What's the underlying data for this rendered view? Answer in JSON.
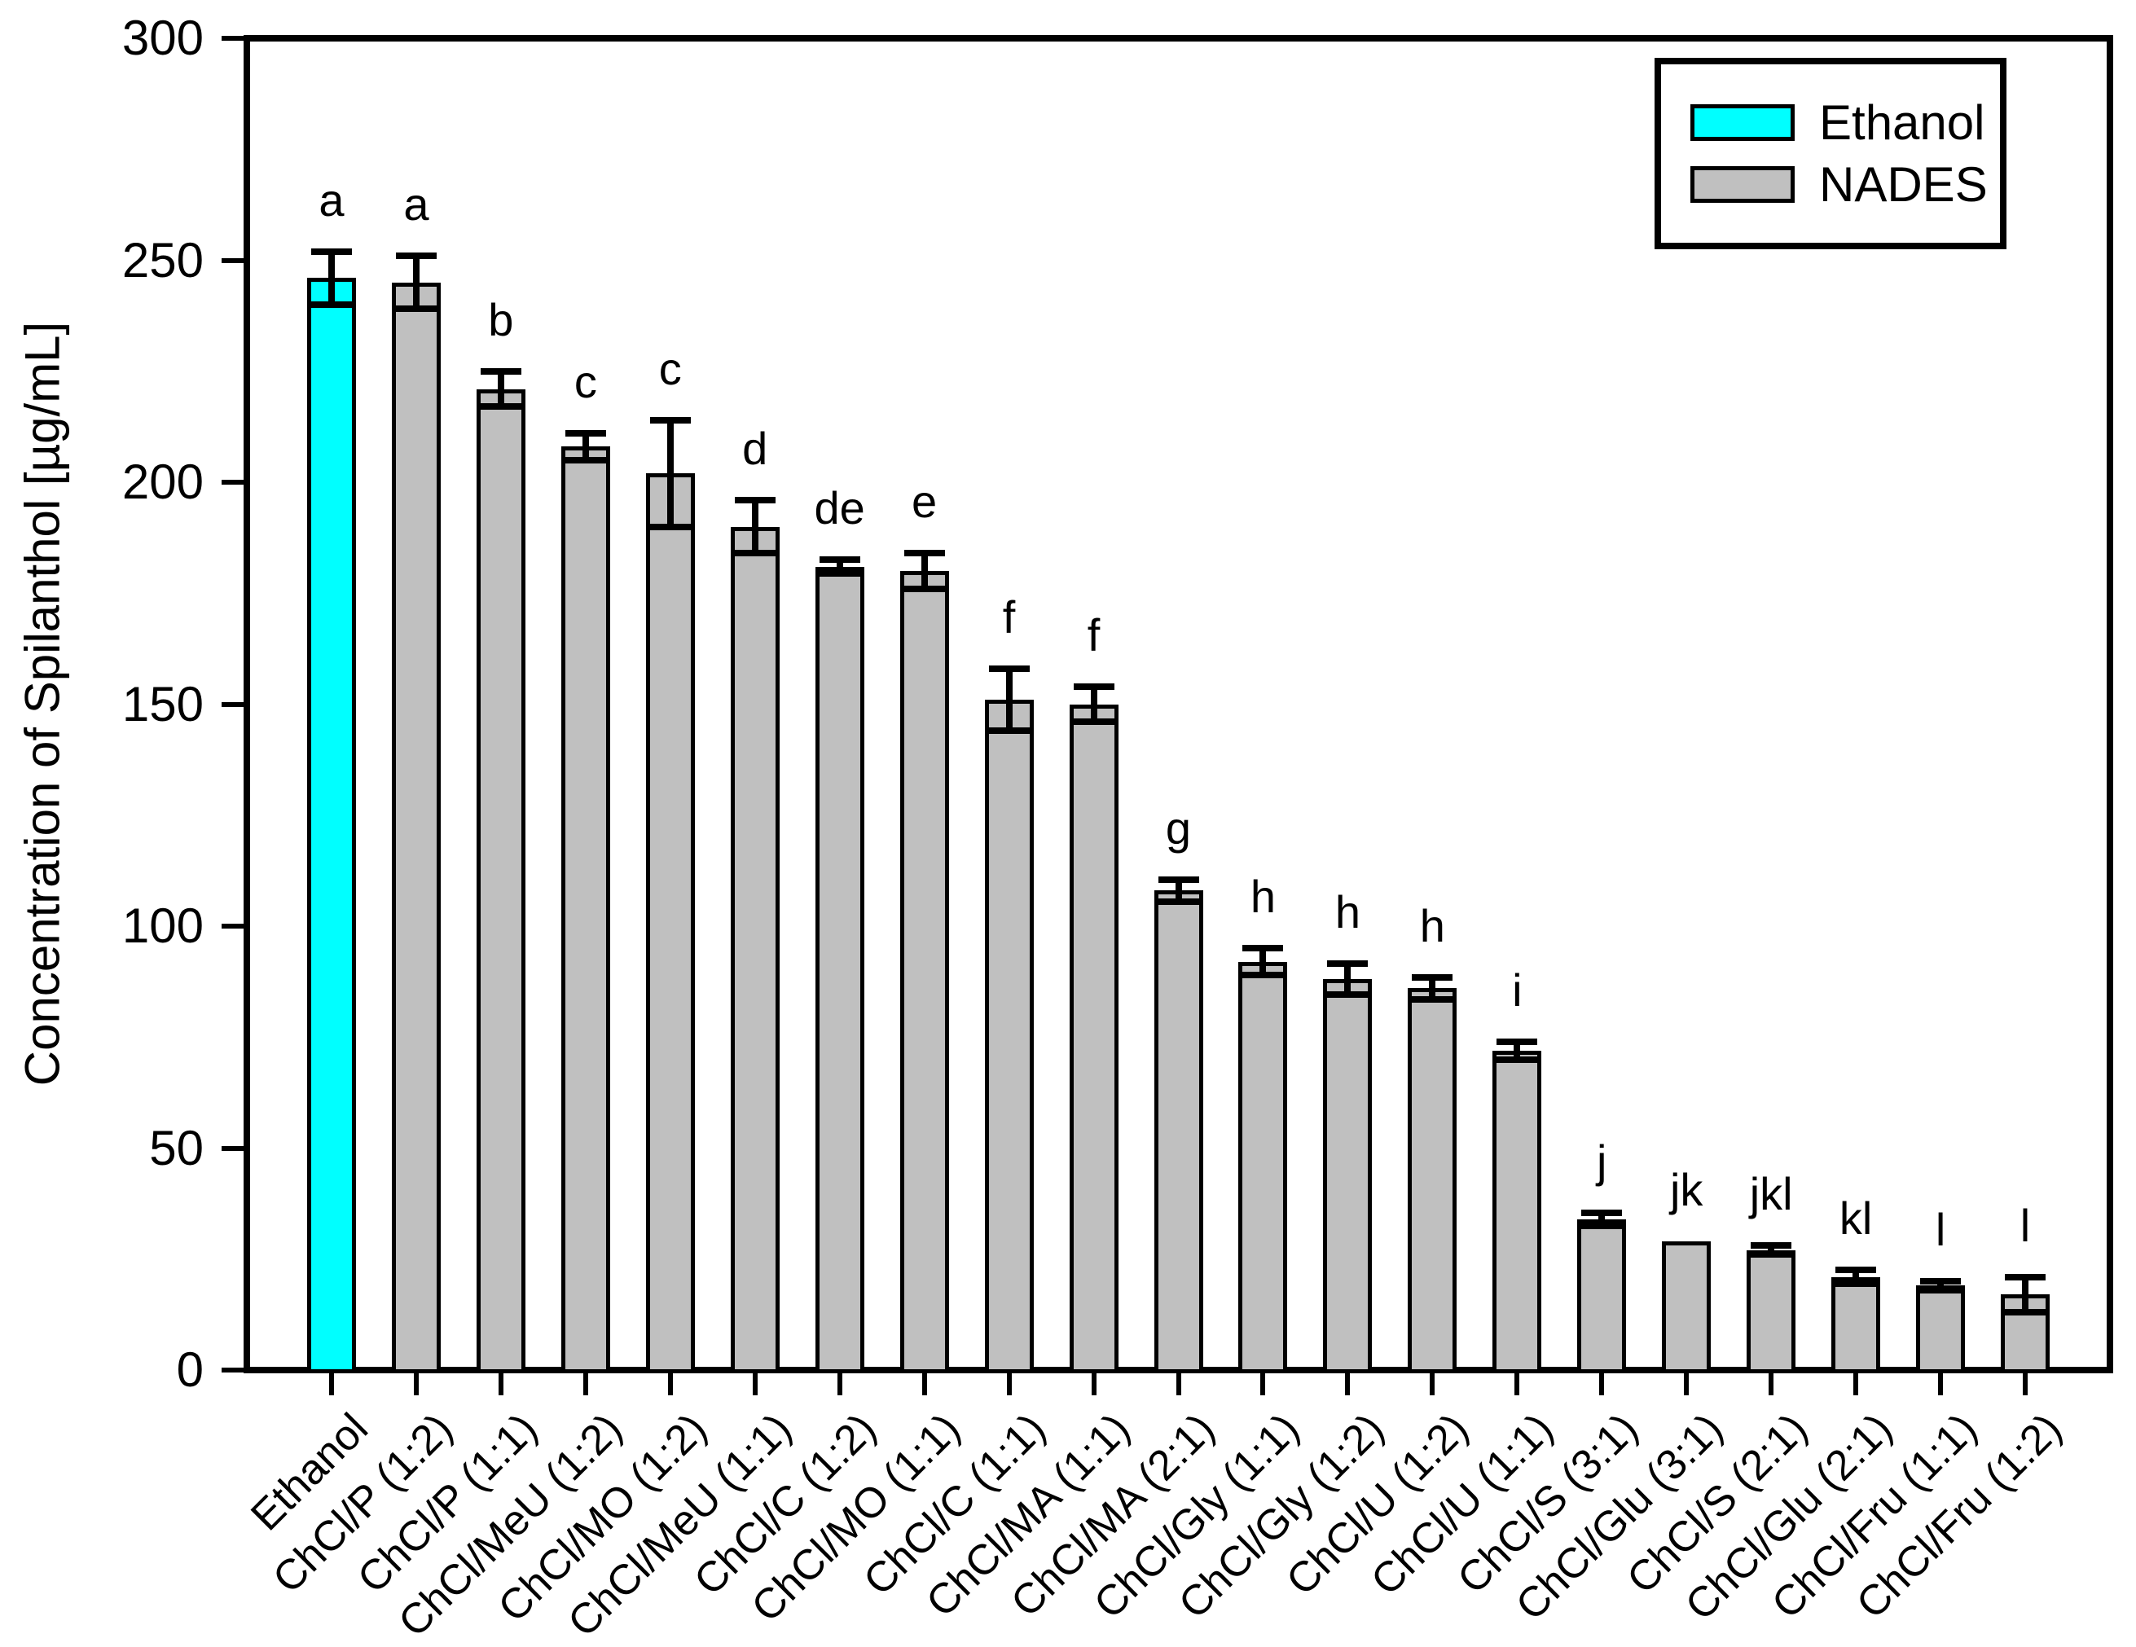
{
  "chart_data": {
    "type": "bar",
    "title": "",
    "xlabel": "",
    "ylabel": "Concentration of Spilanthol [µg/mL]",
    "ylim": [
      0,
      300
    ],
    "yticks": [
      0,
      50,
      100,
      150,
      200,
      250,
      300
    ],
    "grid": false,
    "legend": {
      "position": "top-right",
      "entries": [
        {
          "label": "Ethanol",
          "color": "#00ffff"
        },
        {
          "label": "NADES",
          "color": "#c0c0c0"
        }
      ]
    },
    "categories": [
      "Ethanol",
      "ChCl/P (1:2)",
      "ChCl/P (1:1)",
      "ChCl/MeU (1:2)",
      "ChCl/MO (1:2)",
      "ChCl/MeU (1:1)",
      "ChCl/C (1:2)",
      "ChCl/MO (1:1)",
      "ChCl/C (1:1)",
      "ChCl/MA (1:1)",
      "ChCl/MA (2:1)",
      "ChCl/Gly (1:1)",
      "ChCl/Gly (1:2)",
      "ChCl/U (1:2)",
      "ChCl/U (1:1)",
      "ChCl/S (3:1)",
      "ChCl/Glu (3:1)",
      "ChCl/S (2:1)",
      "ChCl/Glu (2:1)",
      "ChCl/Fru (1:1)",
      "ChCl/Fru (1:2)"
    ],
    "bars": [
      {
        "label": "Ethanol",
        "value": 246,
        "error": 6,
        "letter": "a",
        "group": "Ethanol"
      },
      {
        "label": "ChCl/P (1:2)",
        "value": 245,
        "error": 6,
        "letter": "a",
        "group": "NADES"
      },
      {
        "label": "ChCl/P (1:1)",
        "value": 221,
        "error": 4,
        "letter": "b",
        "group": "NADES"
      },
      {
        "label": "ChCl/MeU (1:2)",
        "value": 208,
        "error": 3,
        "letter": "c",
        "group": "NADES"
      },
      {
        "label": "ChCl/MO (1:2)",
        "value": 202,
        "error": 12,
        "letter": "c",
        "group": "NADES"
      },
      {
        "label": "ChCl/MeU (1:1)",
        "value": 190,
        "error": 6,
        "letter": "d",
        "group": "NADES"
      },
      {
        "label": "ChCl/C (1:2)",
        "value": 181,
        "error": 1.5,
        "letter": "de",
        "group": "NADES"
      },
      {
        "label": "ChCl/MO (1:1)",
        "value": 180,
        "error": 4,
        "letter": "e",
        "group": "NADES"
      },
      {
        "label": "ChCl/C (1:1)",
        "value": 151,
        "error": 7,
        "letter": "f",
        "group": "NADES"
      },
      {
        "label": "ChCl/MA (1:1)",
        "value": 150,
        "error": 4,
        "letter": "f",
        "group": "NADES"
      },
      {
        "label": "ChCl/MA (2:1)",
        "value": 108,
        "error": 2.5,
        "letter": "g",
        "group": "NADES"
      },
      {
        "label": "ChCl/Gly (1:1)",
        "value": 92,
        "error": 3,
        "letter": "h",
        "group": "NADES"
      },
      {
        "label": "ChCl/Gly (1:2)",
        "value": 88,
        "error": 3.5,
        "letter": "h",
        "group": "NADES"
      },
      {
        "label": "ChCl/U (1:2)",
        "value": 86,
        "error": 2.5,
        "letter": "h",
        "group": "NADES"
      },
      {
        "label": "ChCl/U (1:1)",
        "value": 72,
        "error": 2,
        "letter": "i",
        "group": "NADES"
      },
      {
        "label": "ChCl/S (3:1)",
        "value": 34,
        "error": 1.5,
        "letter": "j",
        "group": "NADES"
      },
      {
        "label": "ChCl/Glu (3:1)",
        "value": 29,
        "error": 0,
        "letter": "jk",
        "group": "NADES"
      },
      {
        "label": "ChCl/S (2:1)",
        "value": 27,
        "error": 1,
        "letter": "jkl",
        "group": "NADES"
      },
      {
        "label": "ChCl/Glu (2:1)",
        "value": 21,
        "error": 1.5,
        "letter": "kl",
        "group": "NADES"
      },
      {
        "label": "ChCl/Fru (1:1)",
        "value": 19,
        "error": 1,
        "letter": "l",
        "group": "NADES"
      },
      {
        "label": "ChCl/Fru (1:2)",
        "value": 17,
        "error": 4,
        "letter": "l",
        "group": "NADES"
      }
    ]
  },
  "style": {
    "ethanol_color": "#00ffff",
    "nades_color": "#c0c0c0",
    "axis_color": "#000000",
    "background": "#ffffff"
  }
}
